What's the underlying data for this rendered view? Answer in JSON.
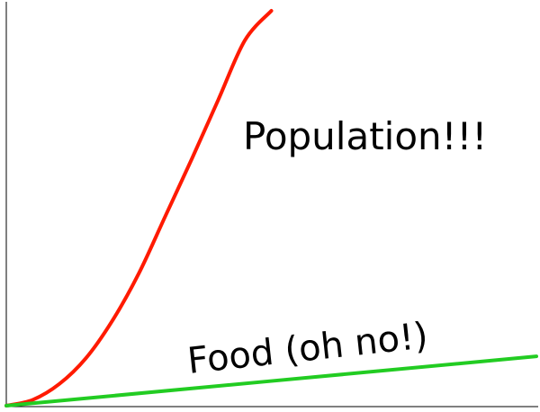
{
  "chart_data": {
    "type": "line",
    "title": "",
    "xlabel": "",
    "ylabel": "",
    "grid": false,
    "axes": {
      "left": true,
      "bottom": true,
      "ticks": false
    },
    "series": [
      {
        "name": "Population!!!",
        "color": "#ff1a00",
        "x": [
          0.0,
          0.05,
          0.1,
          0.15,
          0.2,
          0.25,
          0.3,
          0.35,
          0.4,
          0.45,
          0.5
        ],
        "y": [
          0.0,
          0.015,
          0.055,
          0.12,
          0.215,
          0.335,
          0.48,
          0.625,
          0.775,
          0.925,
          1.0
        ]
      },
      {
        "name": "Food (oh no!)",
        "color": "#22cc22",
        "x": [
          0.0,
          1.0
        ],
        "y": [
          0.0,
          0.125
        ]
      }
    ],
    "annotations": [
      {
        "text": "Population!!!",
        "series": 0
      },
      {
        "text": "Food (oh no!)",
        "series": 1
      }
    ]
  }
}
